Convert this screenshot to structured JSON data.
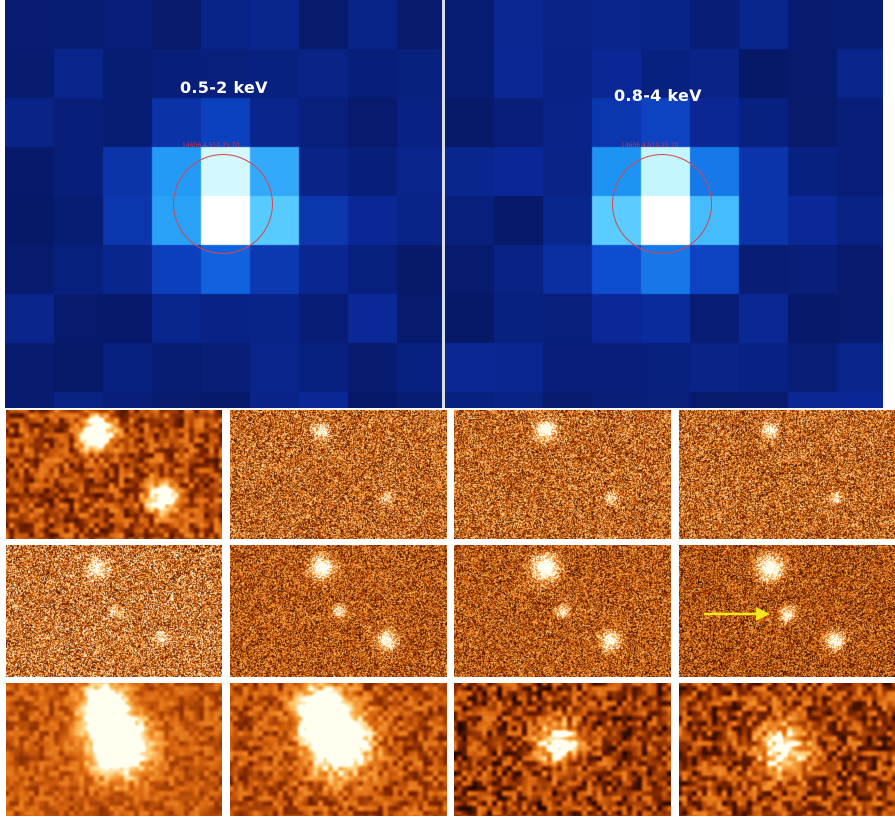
{
  "xray_panels": [
    {
      "label": "0.5-2 keV",
      "region_text": "14606 4.510 25.70",
      "colormap": "blue"
    },
    {
      "label": "0.8-4 keV",
      "region_text": "14606 4.510 25.70",
      "colormap": "blue"
    }
  ],
  "optical_grid": {
    "rows": 3,
    "columns": 4,
    "colormap": "heat-orange",
    "annotation": {
      "type": "arrow",
      "color": "#f5e51a",
      "row": 2,
      "column": 4
    }
  },
  "colors": {
    "xray_background": "#0a1c6e",
    "circle": "#d6454e",
    "arrow": "#f5e51a",
    "separator": "#ffffff"
  }
}
